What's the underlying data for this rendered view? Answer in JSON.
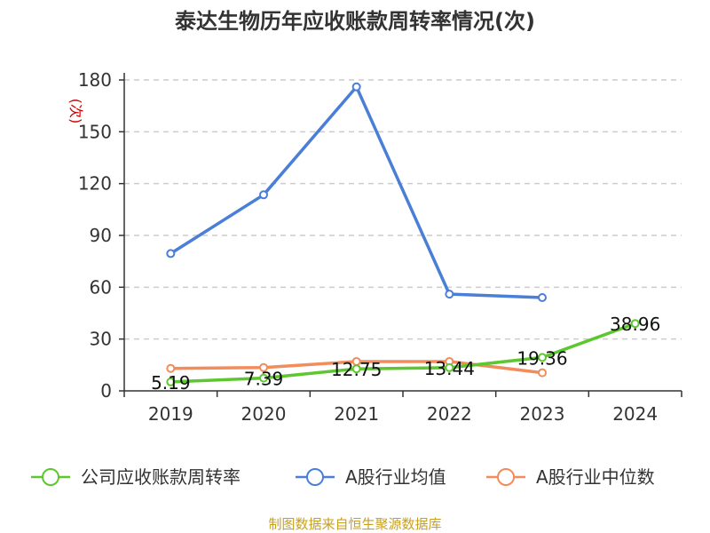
{
  "title": "泰达生物历年应收账款周转率情况(次)",
  "source": "制图数据来自恒生聚源数据库",
  "chart_data": {
    "type": "line",
    "categories": [
      "2019",
      "2020",
      "2021",
      "2022",
      "2023",
      "2024"
    ],
    "ylabel": "(次)",
    "ylim": [
      0,
      180
    ],
    "yticks": [
      0,
      30,
      60,
      90,
      120,
      150,
      180
    ],
    "grid": true,
    "legend_position": "bottom",
    "series": [
      {
        "name": "公司应收账款周转率",
        "color": "#5cc72e",
        "values": [
          5.19,
          7.39,
          12.75,
          13.44,
          19.36,
          38.96
        ],
        "labels": [
          "5.19",
          "7.39",
          "12.75",
          "13.44",
          "19.36",
          "38.96"
        ]
      },
      {
        "name": "A股行业均值",
        "color": "#4a7fd8",
        "values": [
          79.5,
          113.5,
          176,
          56,
          54,
          null
        ]
      },
      {
        "name": "A股行业中位数",
        "color": "#f28c5a",
        "values": [
          13,
          13.5,
          17,
          17,
          10.5,
          null
        ]
      }
    ]
  }
}
